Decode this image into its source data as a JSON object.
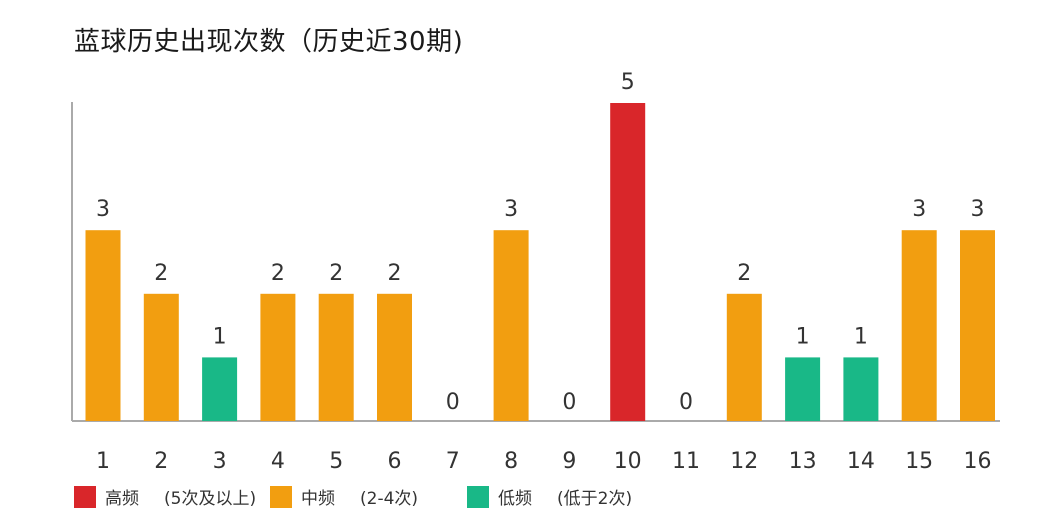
{
  "chart_data": {
    "type": "bar",
    "title": "蓝球历史出现次数（历史近30期)",
    "xlabel": "",
    "ylabel": "",
    "categories": [
      "1",
      "2",
      "3",
      "4",
      "5",
      "6",
      "7",
      "8",
      "9",
      "10",
      "11",
      "12",
      "13",
      "14",
      "15",
      "16"
    ],
    "values": [
      3,
      2,
      1,
      2,
      2,
      2,
      0,
      3,
      0,
      5,
      0,
      2,
      1,
      1,
      3,
      3
    ],
    "ylim": [
      0,
      5
    ],
    "grid": false,
    "legend_position": "bottom-left",
    "legend": [
      {
        "label": "高频",
        "note": "(5次及以上)",
        "color": "#d9262a",
        "min": 5
      },
      {
        "label": "中频",
        "note": "(2-4次)",
        "color": "#f29e10",
        "min": 2
      },
      {
        "label": "低频",
        "note": "(低于2次)",
        "color": "#19b887",
        "min": 0
      }
    ],
    "value_label_highlight_color": "#d9262a"
  }
}
